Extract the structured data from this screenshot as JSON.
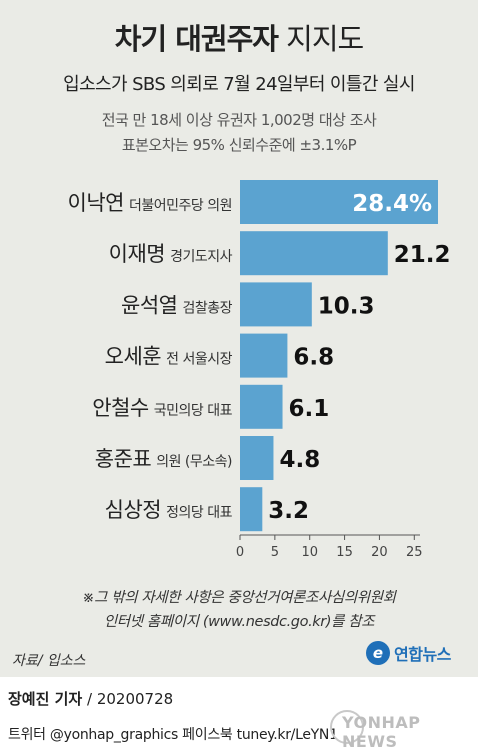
{
  "title": {
    "bold": "차기 대권주자",
    "light": "지지도"
  },
  "subtitle": "입소스가 SBS 의뢰로 7월 24일부터 이틀간 실시",
  "notes": [
    "전국 만 18세 이상 유권자 1,002명 대상 조사",
    "표본오차는 95% 신뢰수준에 ±3.1%P"
  ],
  "chart_data": {
    "type": "bar",
    "orientation": "horizontal",
    "categories": [
      {
        "name": "이낙연",
        "desc": "더불어민주당 의원"
      },
      {
        "name": "이재명",
        "desc": "경기도지사"
      },
      {
        "name": "윤석열",
        "desc": "검찰총장"
      },
      {
        "name": "오세훈",
        "desc": "전 서울시장"
      },
      {
        "name": "안철수",
        "desc": "국민의당 대표"
      },
      {
        "name": "홍준표",
        "desc": "의원 (무소속)"
      },
      {
        "name": "심상정",
        "desc": "정의당 대표"
      }
    ],
    "values": [
      28.4,
      21.2,
      10.3,
      6.8,
      6.1,
      4.8,
      3.2
    ],
    "value_labels": [
      "28.4%",
      "21.2",
      "10.3",
      "6.8",
      "6.1",
      "4.8",
      "3.2"
    ],
    "xticks": [
      "0",
      "5",
      "10",
      "15",
      "20",
      "25"
    ],
    "xlim": [
      0,
      28.4
    ],
    "bar_color": "#5ba3d0"
  },
  "footnotes": [
    "※그 밖의 자세한 사항은 중앙선거여론조사심의위원회",
    "인터넷 홈페이지 (www.nesdc.go.kr)를 참조"
  ],
  "source": "자료/ 입소스",
  "logo": {
    "mark": "e",
    "text": "연합뉴스"
  },
  "byline": {
    "author": "장예진 기자",
    "date": "/ 20200728"
  },
  "social": "트위터 @yonhap_graphics 페이스북 tuney.kr/LeYN1",
  "watermark": "YONHAP NEWS"
}
